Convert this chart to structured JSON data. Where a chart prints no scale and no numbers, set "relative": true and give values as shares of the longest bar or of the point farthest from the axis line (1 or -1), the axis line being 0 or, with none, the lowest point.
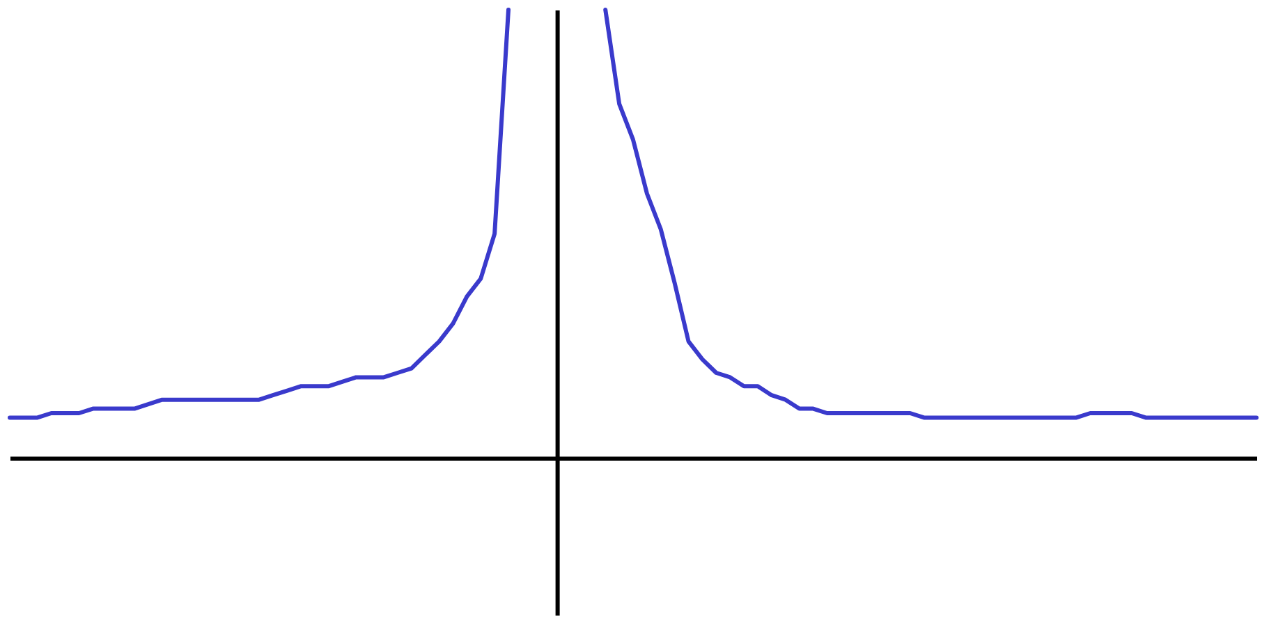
{
  "chart_data": {
    "type": "line",
    "relative": true,
    "categories": [
      null,
      null,
      null,
      null,
      null,
      null,
      null,
      null,
      null,
      null,
      null,
      null,
      null,
      null,
      null,
      null,
      null,
      null,
      null,
      null,
      null,
      null,
      null,
      null,
      null,
      null,
      null,
      null,
      null,
      null,
      null,
      null,
      null,
      null,
      null,
      null,
      null,
      null,
      null,
      null,
      null,
      null,
      null,
      null,
      null,
      null,
      null,
      null,
      null,
      null,
      null,
      null,
      null,
      null,
      null,
      null,
      null,
      null,
      null,
      null,
      null,
      null,
      null,
      null,
      null,
      null,
      null,
      null,
      null,
      null,
      null,
      null,
      null,
      null,
      null,
      null,
      null,
      null,
      null,
      null,
      null,
      null,
      null,
      null,
      null,
      null,
      null,
      null,
      null,
      null,
      null
    ],
    "series": [
      {
        "color": "#3a3acc",
        "values": [
          0.09,
          0.09,
          0.09,
          0.1,
          0.1,
          0.1,
          0.11,
          0.11,
          0.11,
          0.11,
          0.12,
          0.13,
          0.13,
          0.13,
          0.13,
          0.13,
          0.13,
          0.13,
          0.13,
          0.14,
          0.15,
          0.16,
          0.16,
          0.16,
          0.17,
          0.18,
          0.18,
          0.18,
          0.19,
          0.2,
          0.23,
          0.26,
          0.3,
          0.36,
          0.4,
          0.5,
          1.0,
          null,
          null,
          null,
          null,
          null,
          null,
          null,
          null,
          null,
          null,
          null,
          null,
          null,
          null,
          null,
          null,
          null,
          null,
          null,
          null,
          null,
          null,
          null,
          null,
          null,
          null,
          null,
          null,
          null,
          null,
          null,
          null,
          null,
          null,
          null,
          null,
          null,
          null,
          null,
          null,
          null,
          null,
          null,
          null,
          null,
          null,
          null,
          null,
          null,
          null,
          null,
          null,
          null,
          null
        ]
      },
      {
        "color": "#3a3acc",
        "values": [
          null,
          null,
          null,
          null,
          null,
          null,
          null,
          null,
          null,
          null,
          null,
          null,
          null,
          null,
          null,
          null,
          null,
          null,
          null,
          null,
          null,
          null,
          null,
          null,
          null,
          null,
          null,
          null,
          null,
          null,
          null,
          null,
          null,
          null,
          null,
          null,
          null,
          null,
          null,
          null,
          null,
          null,
          null,
          1.0,
          0.79,
          0.71,
          0.59,
          0.51,
          0.39,
          0.26,
          0.22,
          0.19,
          0.18,
          0.16,
          0.16,
          0.14,
          0.13,
          0.11,
          0.11,
          0.1,
          0.1,
          0.1,
          0.1,
          0.1,
          0.1,
          0.1,
          0.09,
          0.09,
          0.09,
          0.09,
          0.09,
          0.09,
          0.09,
          0.09,
          0.09,
          0.09,
          0.09,
          0.09,
          0.1,
          0.1,
          0.1,
          0.1,
          0.09,
          0.09,
          0.09,
          0.09,
          0.09,
          0.09,
          0.09,
          0.09,
          0.09
        ]
      }
    ]
  }
}
